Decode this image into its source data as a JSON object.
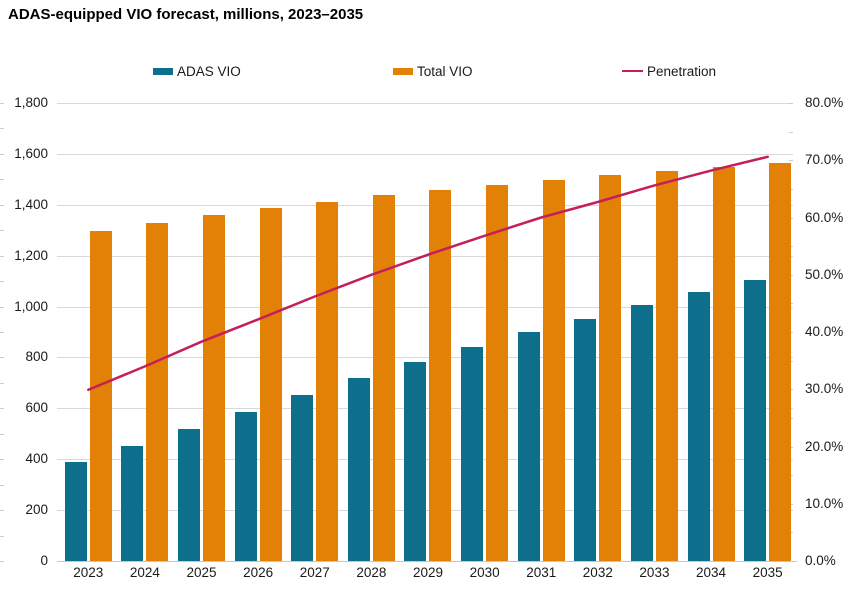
{
  "title": "ADAS-equipped VIO forecast, millions, 2023–2035",
  "legend": [
    {
      "label": "ADAS VIO",
      "type": "bar",
      "color": "#0E6F8C"
    },
    {
      "label": "Total VIO",
      "type": "bar",
      "color": "#E38106"
    },
    {
      "label": "Penetration",
      "type": "line",
      "color": "#C51E5C"
    }
  ],
  "chart_data": {
    "type": "combo",
    "title": "ADAS-equipped VIO forecast, millions, 2023–2035",
    "categories": [
      "2023",
      "2024",
      "2025",
      "2026",
      "2027",
      "2028",
      "2029",
      "2030",
      "2031",
      "2032",
      "2033",
      "2034",
      "2035"
    ],
    "series": [
      {
        "name": "ADAS VIO",
        "type": "bar",
        "axis": "left",
        "color": "#0E6F8C",
        "values": [
          388,
          452,
          520,
          586,
          652,
          719,
          781,
          840,
          899,
          952,
          1006,
          1057,
          1104
        ]
      },
      {
        "name": "Total VIO",
        "type": "bar",
        "axis": "left",
        "color": "#E38106",
        "values": [
          1296,
          1328,
          1358,
          1388,
          1412,
          1437,
          1460,
          1479,
          1499,
          1517,
          1533,
          1549,
          1563
        ]
      },
      {
        "name": "Penetration",
        "type": "line",
        "axis": "right",
        "color": "#C51E5C",
        "unit": "%",
        "values": [
          29.9,
          34.0,
          38.3,
          42.2,
          46.2,
          50.0,
          53.5,
          56.8,
          60.0,
          62.7,
          65.6,
          68.2,
          70.6
        ]
      }
    ],
    "left_axis": {
      "min": 0,
      "max": 1800,
      "step": 200,
      "tick_labels": [
        "0",
        "200",
        "400",
        "600",
        "800",
        "1,000",
        "1,200",
        "1,400",
        "1,600",
        "1,800"
      ]
    },
    "right_axis": {
      "min": 0,
      "max": 80,
      "step": 10,
      "format": "percent",
      "tick_labels": [
        "0.0%",
        "10.0%",
        "20.0%",
        "30.0%",
        "40.0%",
        "50.0%",
        "60.0%",
        "70.0%",
        "80.0%"
      ]
    },
    "grid": true,
    "legend_position": "top",
    "xlabel": "",
    "ylabel": ""
  }
}
